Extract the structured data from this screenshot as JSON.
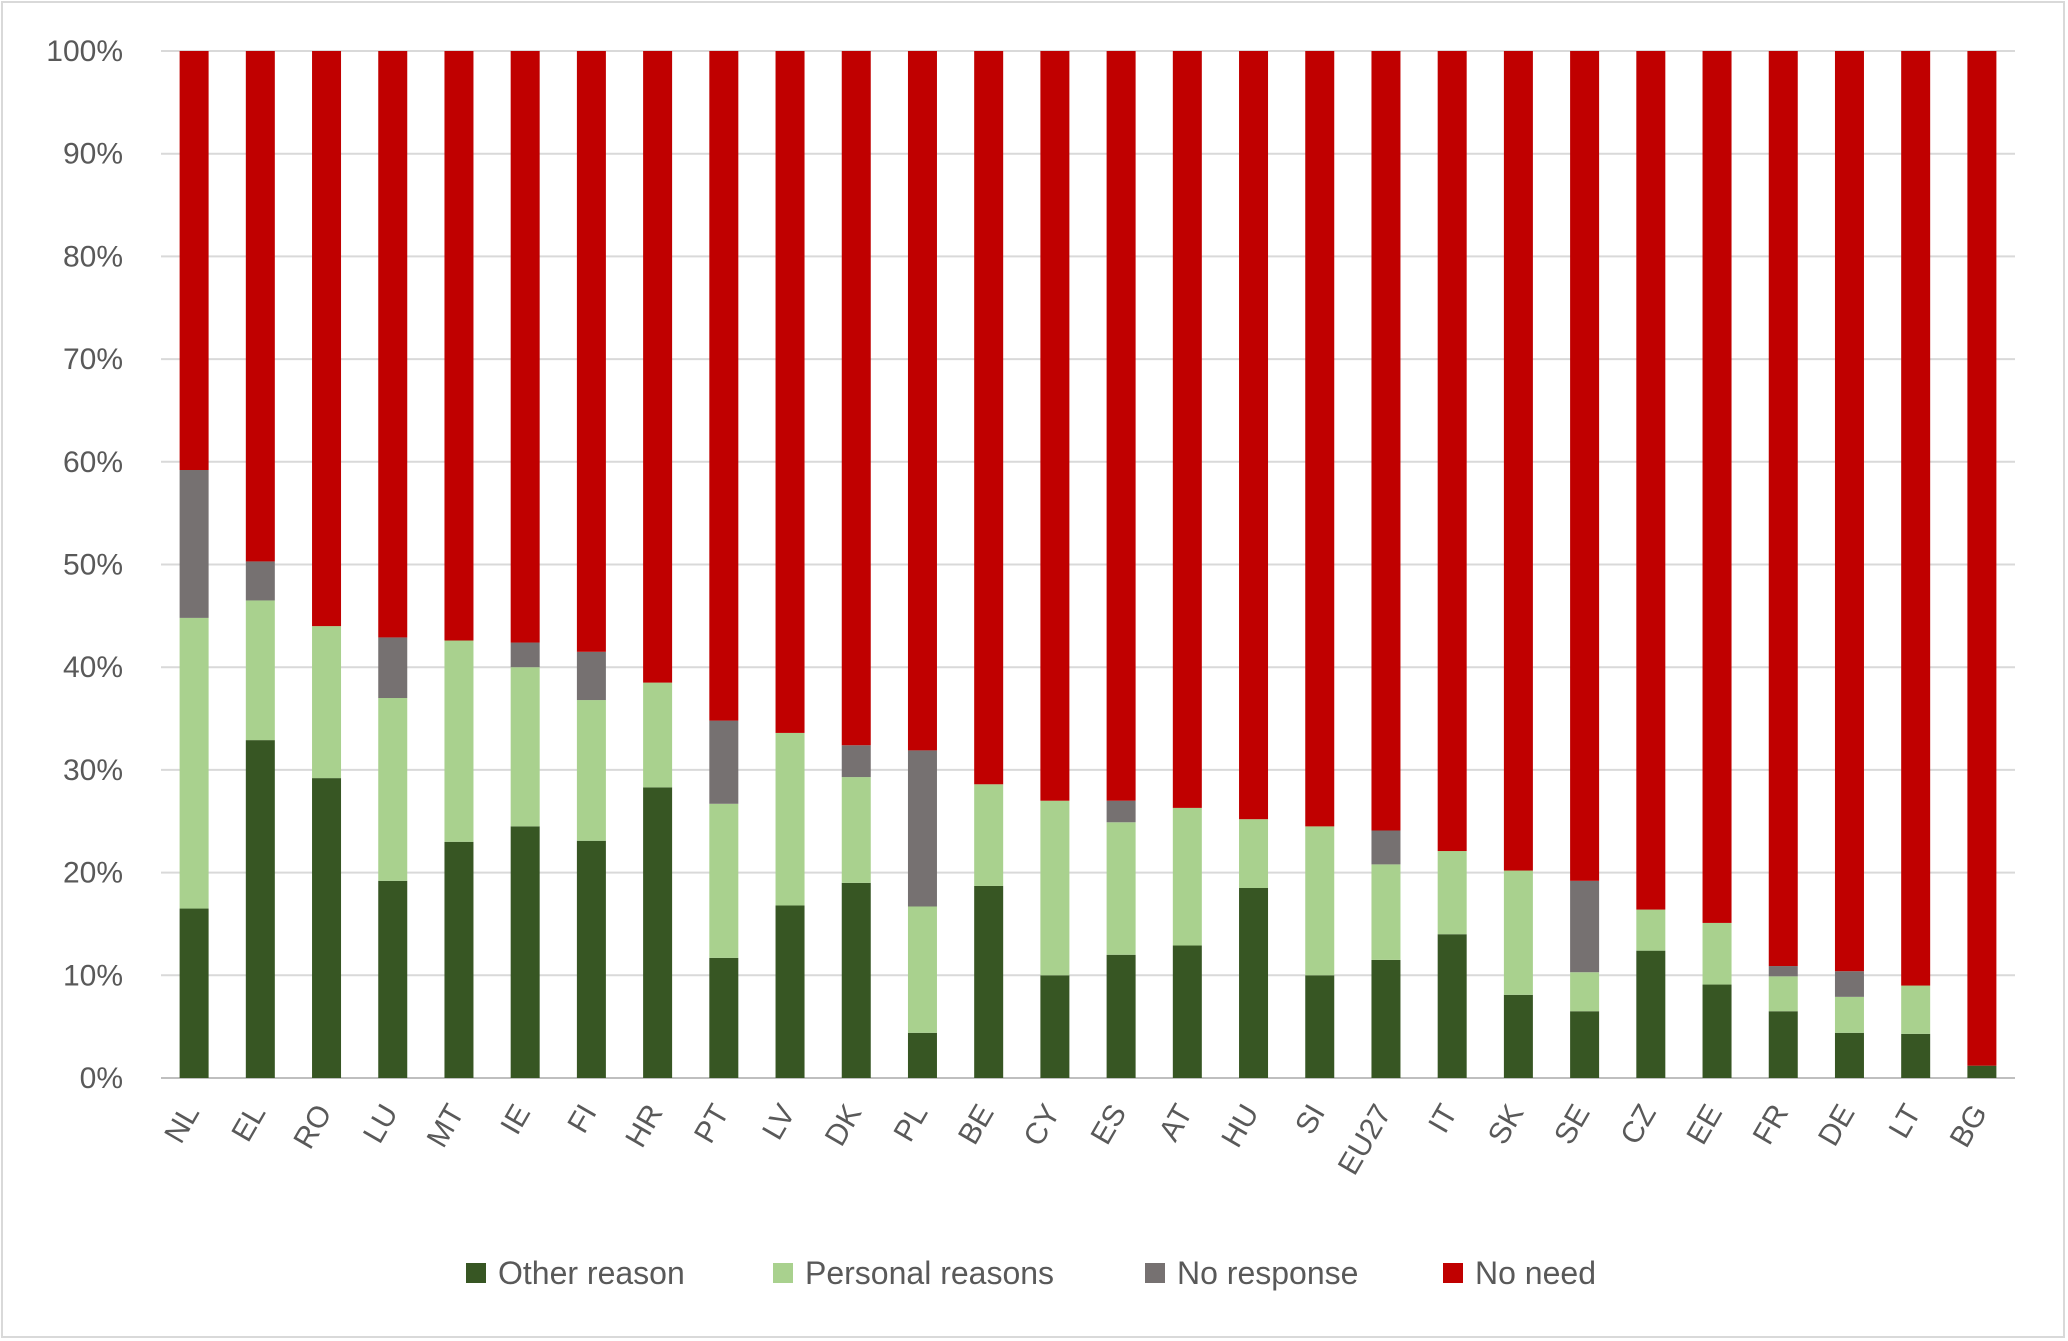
{
  "chart_data": {
    "type": "bar",
    "stacked": true,
    "percent_stacked": true,
    "title": "",
    "xlabel": "",
    "ylabel": "",
    "ylim": [
      0,
      100
    ],
    "yticks": [
      "0%",
      "10%",
      "20%",
      "30%",
      "40%",
      "50%",
      "60%",
      "70%",
      "80%",
      "90%",
      "100%"
    ],
    "grid": true,
    "legend_position": "bottom",
    "categories": [
      "NL",
      "EL",
      "RO",
      "LU",
      "MT",
      "IE",
      "FI",
      "HR",
      "PT",
      "LV",
      "DK",
      "PL",
      "BE",
      "CY",
      "ES",
      "AT",
      "HU",
      "SI",
      "EU27",
      "IT",
      "SK",
      "SE",
      "CZ",
      "EE",
      "FR",
      "DE",
      "LT",
      "BG"
    ],
    "series": [
      {
        "name": "Other reason",
        "color": "#375623",
        "values": [
          16.5,
          32.9,
          29.2,
          19.2,
          23.0,
          24.5,
          23.1,
          28.3,
          11.7,
          16.8,
          19.0,
          4.4,
          18.7,
          10.0,
          12.0,
          12.9,
          18.5,
          10.0,
          11.5,
          14.0,
          8.1,
          6.5,
          12.4,
          9.1,
          6.5,
          4.4,
          4.3,
          1.2
        ]
      },
      {
        "name": "Personal reasons",
        "color": "#A9D18E",
        "values": [
          28.3,
          13.6,
          14.8,
          17.8,
          19.6,
          15.5,
          13.7,
          10.2,
          15.0,
          16.8,
          10.3,
          12.3,
          9.9,
          17.0,
          12.9,
          13.4,
          6.7,
          14.5,
          9.3,
          8.1,
          12.1,
          3.8,
          4.0,
          6.0,
          3.4,
          3.5,
          4.7,
          0.0
        ]
      },
      {
        "name": "No response",
        "color": "#767171",
        "values": [
          14.4,
          3.8,
          0.0,
          5.9,
          0.0,
          2.4,
          4.7,
          0.0,
          8.1,
          0.0,
          3.1,
          15.2,
          0.0,
          0.0,
          2.1,
          0.0,
          0.0,
          0.0,
          3.3,
          0.0,
          0.0,
          8.9,
          0.0,
          0.0,
          1.0,
          2.5,
          0.0,
          0.0
        ]
      },
      {
        "name": "No need",
        "color": "#C00000",
        "values": [
          40.8,
          49.7,
          56.0,
          57.1,
          57.4,
          57.6,
          58.5,
          61.5,
          65.2,
          66.4,
          67.6,
          68.1,
          71.4,
          73.0,
          73.0,
          73.7,
          74.8,
          75.5,
          75.9,
          77.9,
          79.8,
          80.8,
          83.6,
          84.9,
          89.1,
          89.6,
          91.0,
          98.8
        ]
      }
    ]
  }
}
